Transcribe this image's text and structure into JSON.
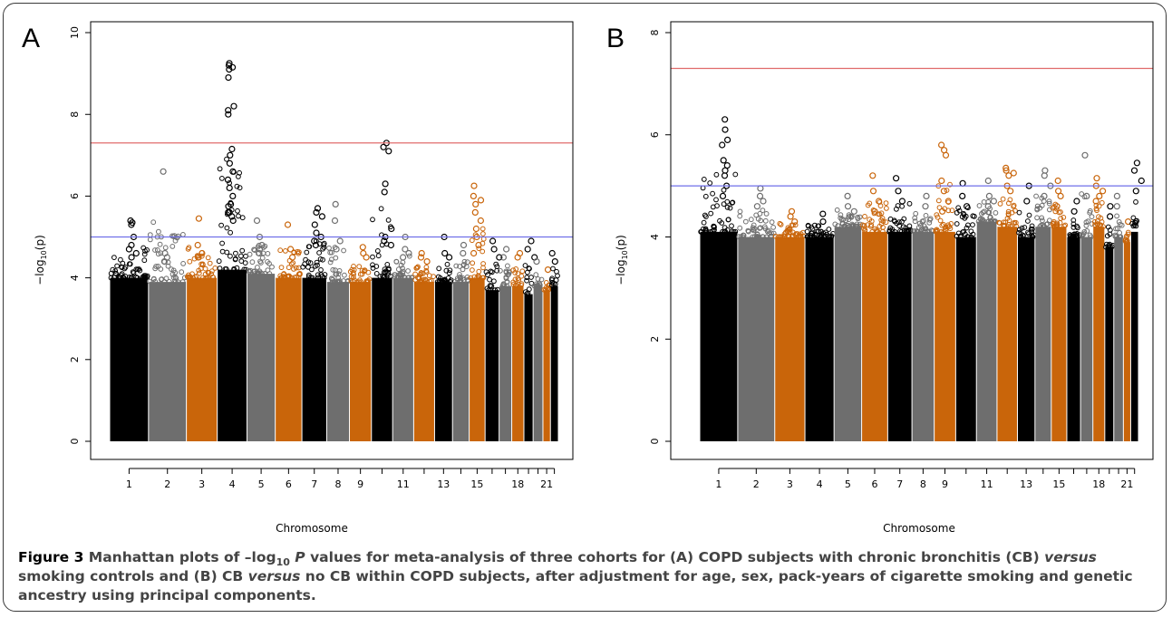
{
  "chart_data": [
    {
      "type": "scatter",
      "panel": "A",
      "title": "",
      "xlabel": "Chromosome",
      "ylabel_base": "−log",
      "ylabel_sub": "10",
      "ylabel_arg": "(p)",
      "ylim": [
        0,
        10
      ],
      "yticks": [
        0,
        2,
        4,
        6,
        8,
        10
      ],
      "x_tick_labels": [
        "1",
        "2",
        "3",
        "4",
        "5",
        "6",
        "7",
        "8",
        "9",
        "11",
        "13",
        "15",
        "18",
        "21"
      ],
      "thresholds": [
        {
          "value": 7.3,
          "color": "#e06b6b"
        },
        {
          "value": 5.0,
          "color": "#6f6fe8"
        }
      ],
      "series": [
        {
          "chromosome": "1",
          "color": "#000000",
          "max": 5.4,
          "base": 4.0,
          "peaks": [
            5.4,
            5.3,
            5.0,
            4.8,
            4.7,
            4.6,
            4.5,
            5.35
          ]
        },
        {
          "chromosome": "2",
          "color": "#6e6e6e",
          "max": 6.6,
          "base": 3.9,
          "peaks": [
            6.6,
            4.6,
            4.5,
            4.4
          ]
        },
        {
          "chromosome": "3",
          "color": "#c9650a",
          "max": 5.45,
          "base": 4.0,
          "peaks": [
            5.45,
            4.8,
            4.6,
            4.5
          ]
        },
        {
          "chromosome": "4",
          "color": "#000000",
          "max": 9.25,
          "base": 4.2,
          "peaks": [
            9.25,
            9.2,
            9.15,
            9.1,
            8.9,
            8.2,
            8.1,
            8.0,
            7.15,
            7.0,
            6.8,
            6.6,
            6.4,
            6.2,
            6.0,
            5.8,
            5.6,
            5.4,
            5.75,
            5.6,
            5.5
          ]
        },
        {
          "chromosome": "5",
          "color": "#6e6e6e",
          "max": 5.4,
          "base": 4.1,
          "peaks": [
            5.4,
            5.0,
            4.8,
            4.7,
            4.6
          ]
        },
        {
          "chromosome": "6",
          "color": "#c9650a",
          "max": 5.3,
          "base": 4.0,
          "peaks": [
            5.3,
            4.7,
            4.5
          ]
        },
        {
          "chromosome": "7",
          "color": "#000000",
          "max": 5.7,
          "base": 4.0,
          "peaks": [
            5.7,
            5.6,
            5.5,
            5.3,
            5.1,
            5.0,
            4.9,
            4.8
          ]
        },
        {
          "chromosome": "8",
          "color": "#6e6e6e",
          "max": 5.8,
          "base": 3.9,
          "peaks": [
            5.8,
            5.4,
            4.9,
            4.7
          ]
        },
        {
          "chromosome": "9",
          "color": "#c9650a",
          "max": 4.75,
          "base": 3.9,
          "peaks": [
            4.75,
            4.6,
            4.5
          ]
        },
        {
          "chromosome": "10",
          "color": "#000000",
          "max": 7.3,
          "base": 4.0,
          "peaks": [
            7.3,
            7.2,
            7.1,
            6.3,
            6.1,
            5.2,
            5.0,
            4.9,
            4.8
          ]
        },
        {
          "chromosome": "11",
          "color": "#6e6e6e",
          "max": 5.0,
          "base": 4.0,
          "peaks": [
            5.0,
            4.7,
            4.6,
            4.5
          ]
        },
        {
          "chromosome": "12",
          "color": "#c9650a",
          "max": 4.6,
          "base": 3.9,
          "peaks": [
            4.6,
            4.5,
            4.4
          ]
        },
        {
          "chromosome": "13",
          "color": "#000000",
          "max": 5.0,
          "base": 3.9,
          "peaks": [
            5.0,
            4.6,
            4.5
          ]
        },
        {
          "chromosome": "14",
          "color": "#6e6e6e",
          "max": 4.8,
          "base": 3.9,
          "peaks": [
            4.8,
            4.6
          ]
        },
        {
          "chromosome": "15",
          "color": "#c9650a",
          "max": 6.25,
          "base": 4.0,
          "peaks": [
            6.25,
            6.0,
            5.9,
            5.8,
            5.6,
            5.4,
            5.2,
            5.0,
            4.8,
            4.6
          ]
        },
        {
          "chromosome": "16",
          "color": "#000000",
          "max": 4.9,
          "base": 3.7,
          "peaks": [
            4.9,
            4.7,
            4.5
          ]
        },
        {
          "chromosome": "17",
          "color": "#6e6e6e",
          "max": 4.7,
          "base": 3.8,
          "peaks": [
            4.7,
            4.5
          ]
        },
        {
          "chromosome": "18",
          "color": "#c9650a",
          "max": 4.6,
          "base": 3.8,
          "peaks": [
            4.6,
            4.5
          ]
        },
        {
          "chromosome": "19",
          "color": "#000000",
          "max": 4.9,
          "base": 3.6,
          "peaks": [
            4.9,
            4.7,
            4.5
          ]
        },
        {
          "chromosome": "20",
          "color": "#6e6e6e",
          "max": 4.4,
          "base": 3.8,
          "peaks": [
            4.4
          ]
        },
        {
          "chromosome": "21",
          "color": "#c9650a",
          "max": 4.2,
          "base": 3.7,
          "peaks": [
            4.2
          ]
        },
        {
          "chromosome": "22",
          "color": "#000000",
          "max": 4.6,
          "base": 3.8,
          "peaks": [
            4.6,
            4.4
          ]
        }
      ]
    },
    {
      "type": "scatter",
      "panel": "B",
      "title": "",
      "xlabel": "Chromosome",
      "ylabel_base": "−log",
      "ylabel_sub": "10",
      "ylabel_arg": "(p)",
      "ylim": [
        0,
        8
      ],
      "yticks": [
        0,
        2,
        4,
        6,
        8
      ],
      "x_tick_labels": [
        "1",
        "2",
        "3",
        "4",
        "5",
        "6",
        "7",
        "8",
        "9",
        "11",
        "13",
        "15",
        "18",
        "21"
      ],
      "thresholds": [
        {
          "value": 7.3,
          "color": "#e06b6b"
        },
        {
          "value": 5.0,
          "color": "#6f6fe8"
        }
      ],
      "series": [
        {
          "chromosome": "1",
          "color": "#000000",
          "max": 6.3,
          "base": 4.1,
          "peaks": [
            6.3,
            6.1,
            5.9,
            5.8,
            5.5,
            5.4,
            5.3,
            5.2,
            5.0,
            4.8
          ]
        },
        {
          "chromosome": "2",
          "color": "#6e6e6e",
          "max": 4.95,
          "base": 4.0,
          "peaks": [
            4.95,
            4.8,
            4.7,
            4.6
          ]
        },
        {
          "chromosome": "3",
          "color": "#c9650a",
          "max": 4.5,
          "base": 4.0,
          "peaks": [
            4.5,
            4.4,
            4.3
          ]
        },
        {
          "chromosome": "4",
          "color": "#000000",
          "max": 4.45,
          "base": 4.0,
          "peaks": [
            4.45,
            4.3
          ]
        },
        {
          "chromosome": "5",
          "color": "#6e6e6e",
          "max": 4.8,
          "base": 4.2,
          "peaks": [
            4.8,
            4.6,
            4.5
          ]
        },
        {
          "chromosome": "6",
          "color": "#c9650a",
          "max": 5.2,
          "base": 4.1,
          "peaks": [
            5.2,
            4.9,
            4.7,
            4.5
          ]
        },
        {
          "chromosome": "7",
          "color": "#000000",
          "max": 5.15,
          "base": 4.1,
          "peaks": [
            5.15,
            4.9,
            4.7
          ]
        },
        {
          "chromosome": "8",
          "color": "#6e6e6e",
          "max": 4.8,
          "base": 4.1,
          "peaks": [
            4.8,
            4.6
          ]
        },
        {
          "chromosome": "9",
          "color": "#c9650a",
          "max": 5.8,
          "base": 4.1,
          "peaks": [
            5.8,
            5.7,
            5.6,
            5.1,
            4.9,
            4.7,
            4.5
          ]
        },
        {
          "chromosome": "10",
          "color": "#000000",
          "max": 5.05,
          "base": 4.0,
          "peaks": [
            5.05,
            4.8,
            4.6
          ]
        },
        {
          "chromosome": "11",
          "color": "#6e6e6e",
          "max": 5.1,
          "base": 4.3,
          "peaks": [
            5.1,
            4.8,
            4.7,
            4.6
          ]
        },
        {
          "chromosome": "12",
          "color": "#c9650a",
          "max": 5.35,
          "base": 4.2,
          "peaks": [
            5.35,
            5.3,
            5.25,
            5.2,
            5.0,
            4.9
          ]
        },
        {
          "chromosome": "13",
          "color": "#000000",
          "max": 5.0,
          "base": 4.0,
          "peaks": [
            5.0,
            4.7
          ]
        },
        {
          "chromosome": "14",
          "color": "#6e6e6e",
          "max": 5.3,
          "base": 4.2,
          "peaks": [
            5.3,
            5.2,
            5.0,
            4.8
          ]
        },
        {
          "chromosome": "15",
          "color": "#c9650a",
          "max": 5.1,
          "base": 4.2,
          "peaks": [
            5.1,
            4.9,
            4.8,
            4.6
          ]
        },
        {
          "chromosome": "16",
          "color": "#000000",
          "max": 4.7,
          "base": 4.0,
          "peaks": [
            4.7,
            4.5
          ]
        },
        {
          "chromosome": "17",
          "color": "#6e6e6e",
          "max": 5.6,
          "base": 4.0,
          "peaks": [
            5.6,
            4.8
          ]
        },
        {
          "chromosome": "18",
          "color": "#c9650a",
          "max": 5.15,
          "base": 4.2,
          "peaks": [
            5.15,
            5.0,
            4.9,
            4.8,
            4.7
          ]
        },
        {
          "chromosome": "19",
          "color": "#000000",
          "max": 4.6,
          "base": 3.8,
          "peaks": [
            4.6,
            4.4
          ]
        },
        {
          "chromosome": "20",
          "color": "#6e6e6e",
          "max": 4.8,
          "base": 4.0,
          "peaks": [
            4.8,
            4.6
          ]
        },
        {
          "chromosome": "21",
          "color": "#c9650a",
          "max": 4.3,
          "base": 3.9,
          "peaks": [
            4.3
          ]
        },
        {
          "chromosome": "22",
          "color": "#000000",
          "max": 5.45,
          "base": 4.1,
          "peaks": [
            5.45,
            5.3,
            5.1,
            4.9
          ]
        }
      ]
    }
  ],
  "caption": {
    "lead": "Figure 3",
    "part1": " Manhattan plots of –log",
    "sub": "10",
    "p": "P",
    "part2": " values for meta-analysis of three cohorts for (A) COPD subjects with chronic bronchitis (CB) ",
    "versus1": "versus",
    "part3": " smoking controls and (B) CB ",
    "versus2": "versus",
    "part4": " no CB within COPD subjects, after adjustment for age, sex, pack-years of cigarette smoking and genetic ancestry using principal components."
  }
}
